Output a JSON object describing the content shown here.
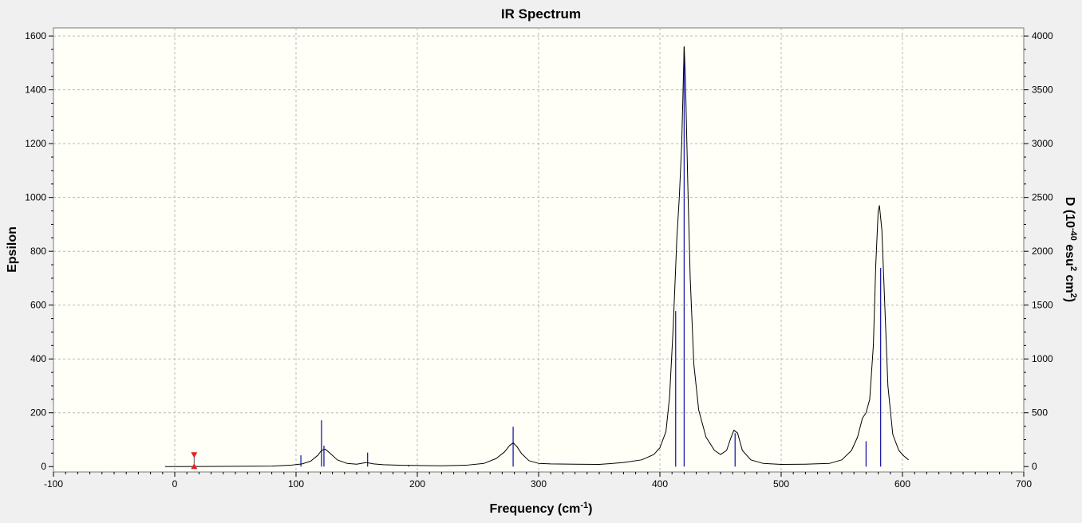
{
  "chart_data": {
    "type": "line",
    "title": "IR Spectrum",
    "xlabel": "Frequency (cm",
    "xlabel_sup": "-1",
    "xlabel_end": ")",
    "ylabel": "Epsilon",
    "y2label_parts": [
      "D (10",
      "-40",
      " esu",
      "2",
      " cm",
      "2",
      ")"
    ],
    "xlim": [
      -100,
      700
    ],
    "ylim": [
      -20,
      1630
    ],
    "y2lim": [
      -50,
      4075
    ],
    "x_ticks": [
      -100,
      0,
      100,
      200,
      300,
      400,
      500,
      600,
      700
    ],
    "y_ticks": [
      0,
      200,
      400,
      600,
      800,
      1000,
      1200,
      1400,
      1600
    ],
    "y2_ticks": [
      0,
      500,
      1000,
      1500,
      2000,
      2500,
      3000,
      3500,
      4000
    ],
    "grid": true,
    "colors": {
      "plot_bg": "#fffff8",
      "curve": "#000000",
      "stick": "#1c1ca8",
      "marker": "#e02020",
      "grid": "#b8b8b8"
    },
    "curve": {
      "name": "Epsilon",
      "x": [
        -8,
        0,
        50,
        80,
        95,
        105,
        112,
        118,
        121,
        124,
        128,
        134,
        142,
        150,
        158,
        164,
        172,
        185,
        200,
        220,
        240,
        255,
        265,
        272,
        276,
        279,
        282,
        286,
        292,
        300,
        310,
        330,
        350,
        370,
        385,
        395,
        400,
        405,
        408,
        411,
        414,
        416,
        418,
        419,
        420,
        421,
        423,
        425,
        428,
        432,
        438,
        445,
        450,
        455,
        458,
        461,
        464,
        468,
        475,
        485,
        500,
        520,
        540,
        550,
        558,
        563,
        567,
        570,
        573,
        576,
        578,
        580,
        581,
        583,
        585,
        588,
        592,
        597,
        601,
        605
      ],
      "y": [
        0,
        0,
        1,
        2,
        5,
        10,
        20,
        42,
        60,
        65,
        50,
        25,
        12,
        9,
        15,
        10,
        7,
        5,
        4,
        3,
        5,
        12,
        30,
        55,
        78,
        88,
        75,
        48,
        22,
        12,
        10,
        9,
        8,
        15,
        25,
        45,
        70,
        130,
        260,
        520,
        850,
        1000,
        1200,
        1380,
        1560,
        1450,
        1050,
        700,
        380,
        210,
        110,
        60,
        45,
        60,
        100,
        135,
        125,
        60,
        25,
        12,
        8,
        9,
        12,
        25,
        60,
        110,
        180,
        200,
        250,
        450,
        750,
        950,
        970,
        880,
        650,
        300,
        120,
        60,
        40,
        25
      ]
    },
    "sticks": {
      "name": "D",
      "x": [
        104,
        121,
        123,
        159,
        193,
        279,
        413,
        420,
        462,
        570,
        582
      ],
      "y": [
        105,
        430,
        195,
        130,
        10,
        370,
        1445,
        3900,
        310,
        235,
        1845
      ]
    },
    "marker_x": 16
  }
}
